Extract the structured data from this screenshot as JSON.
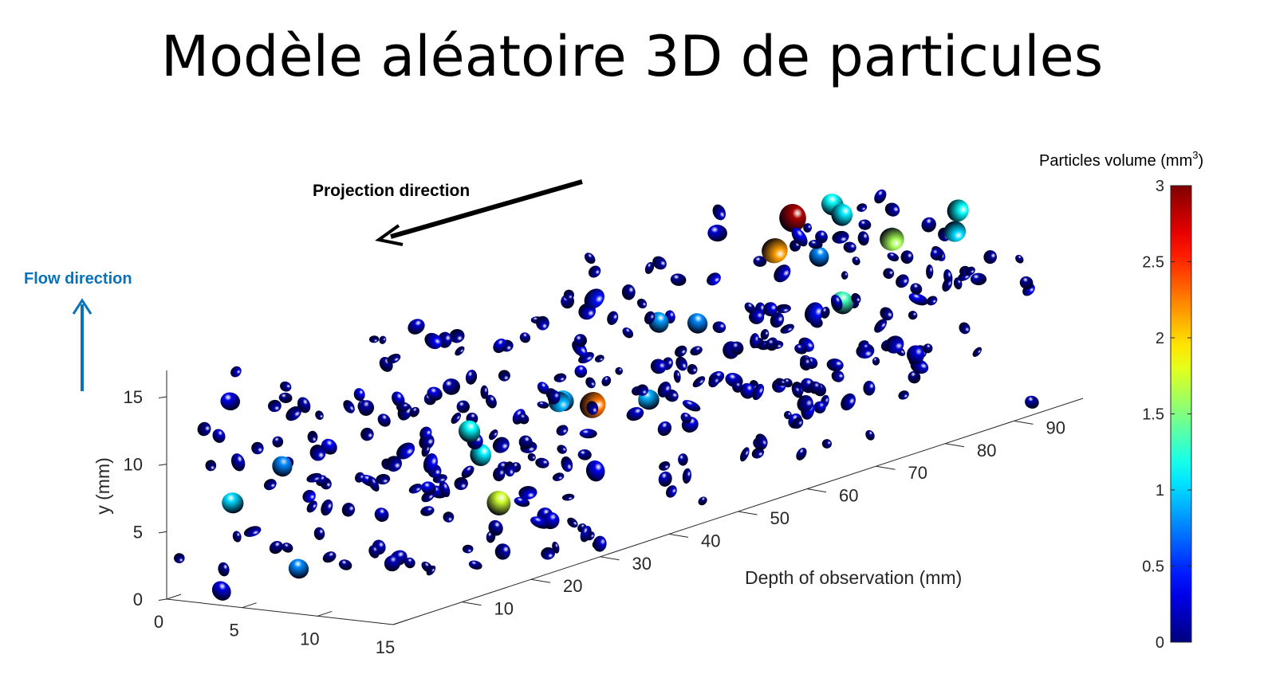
{
  "page": {
    "title": "Modèle aléatoire 3D de particules"
  },
  "annotations": {
    "projection_label": "Projection direction",
    "flow_label": "Flow direction",
    "flow_color": "#0a72ba"
  },
  "chart_data": {
    "type": "scatter",
    "projection": "3d",
    "title": "",
    "xlabel": "",
    "ylabel": "y (mm)",
    "zlabel": "Depth of observation (mm)",
    "x_ticks": [
      0,
      5,
      10,
      15
    ],
    "y_ticks": [
      0,
      5,
      10,
      15
    ],
    "z_ticks": [
      10,
      20,
      30,
      40,
      50,
      60,
      70,
      80,
      90
    ],
    "xlim": [
      0,
      15
    ],
    "ylim": [
      0,
      16
    ],
    "zlim": [
      0,
      100
    ],
    "grid": false,
    "colorbar": {
      "label": "Particles volume (mm",
      "label_superscript": "3",
      "label_suffix": ")",
      "colormap": "jet",
      "range": [
        0,
        3
      ],
      "ticks": [
        0,
        0.5,
        1,
        1.5,
        2,
        2.5,
        3
      ],
      "tick_labels": [
        "0",
        "0.5",
        "1",
        "1.5",
        "2",
        "2.5",
        "3"
      ]
    },
    "points": [
      {
        "x": 3,
        "y": 7,
        "z": 3,
        "v": 1.0
      },
      {
        "x": 6,
        "y": 2,
        "z": 6,
        "v": 0.75
      },
      {
        "x": 4,
        "y": 9,
        "z": 8,
        "v": 0.8
      },
      {
        "x": 10,
        "y": 10,
        "z": 22,
        "v": 1.15
      },
      {
        "x": 8,
        "y": 7,
        "z": 28,
        "v": 1.1
      },
      {
        "x": 6,
        "y": 2,
        "z": 35,
        "v": 1.75
      },
      {
        "x": 10,
        "y": 10,
        "z": 35,
        "v": 0.9
      },
      {
        "x": 4,
        "y": 6,
        "z": 53,
        "v": 2.3
      },
      {
        "x": 10,
        "y": 8,
        "z": 48,
        "v": 0.9
      },
      {
        "x": 7,
        "y": 12,
        "z": 56,
        "v": 0.85
      },
      {
        "x": 5,
        "y": 10,
        "z": 66,
        "v": 0.8
      },
      {
        "x": 6,
        "y": 14,
        "z": 75,
        "v": 2.15
      },
      {
        "x": 4,
        "y": 15,
        "z": 82,
        "v": 2.9
      },
      {
        "x": 10,
        "y": 17,
        "z": 76,
        "v": 1.1
      },
      {
        "x": 8,
        "y": 17,
        "z": 79,
        "v": 1.15
      },
      {
        "x": 5,
        "y": 8,
        "z": 87,
        "v": 1.3
      },
      {
        "x": 6,
        "y": 12,
        "z": 92,
        "v": 1.6
      },
      {
        "x": 3,
        "y": 11,
        "z": 88,
        "v": 0.75
      },
      {
        "x": 8,
        "y": 9,
        "z": 40,
        "v": 0.9
      },
      {
        "x": 9,
        "y": 14,
        "z": 95,
        "v": 1.15
      },
      {
        "x": 12,
        "y": 14,
        "z": 88,
        "v": 1.0
      }
    ],
    "points_note_filler": true
  }
}
